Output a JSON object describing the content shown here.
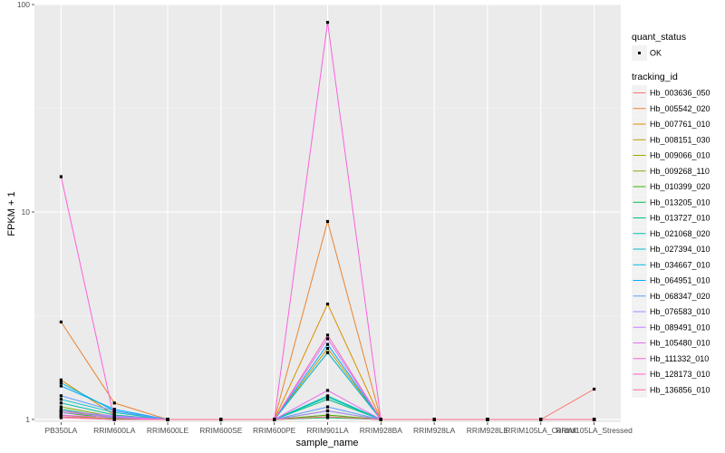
{
  "chart_data": {
    "type": "line",
    "xlabel": "sample_name",
    "ylabel": "FPKM + 1",
    "y_scale": "log10",
    "ylim": [
      0.97,
      100
    ],
    "y_ticks": [
      1,
      10,
      100
    ],
    "y_tick_labels": [
      "1",
      "10",
      "100"
    ],
    "categories": [
      "PB350LA",
      "RRIM600LA",
      "RRIM600LE",
      "RRIM600SE",
      "RRIM600PE",
      "RRIM901LA",
      "RRIM928BA",
      "RRIM928LA",
      "RRIM928LE",
      "RRIM105LA_Control",
      "RRIM105LA_Stressed"
    ],
    "category_labels": [
      "PB350LA",
      "RRIM600LA",
      "RRIM600LE",
      "RRIM600SE",
      "RRIM600PE",
      "RRIM901LA",
      "RRIM928BA",
      "RRIM928LA",
      "RRIM928LE",
      "RRIM105LA_Control",
      "RRIM105LA_Stressed"
    ],
    "grid": true,
    "legend_position": "right",
    "legend_point": {
      "title": "quant_status",
      "label": "OK"
    },
    "legend_title": "tracking_id",
    "series": [
      {
        "name": "Hb_003636_050",
        "color": "#F8766D",
        "values": [
          1.05,
          1.0,
          1.0,
          1.0,
          1.0,
          1.05,
          1.0,
          1.0,
          1.0,
          1.0,
          1.4
        ]
      },
      {
        "name": "Hb_005542_020",
        "color": "#EA8331",
        "values": [
          2.95,
          1.2,
          1.0,
          1.0,
          1.0,
          9.0,
          1.0,
          1.0,
          1.0,
          1.0,
          1.0
        ]
      },
      {
        "name": "Hb_007761_010",
        "color": "#D89000",
        "values": [
          1.55,
          1.05,
          1.0,
          1.0,
          1.0,
          3.6,
          1.0,
          1.0,
          1.0,
          1.0,
          1.0
        ]
      },
      {
        "name": "Hb_008151_030",
        "color": "#C09B00",
        "values": [
          1.1,
          1.02,
          1.0,
          1.0,
          1.0,
          2.2,
          1.0,
          1.0,
          1.0,
          1.0,
          1.0
        ]
      },
      {
        "name": "Hb_009066_010",
        "color": "#A3A500",
        "values": [
          1.05,
          1.0,
          1.0,
          1.0,
          1.0,
          2.1,
          1.0,
          1.0,
          1.0,
          1.0,
          1.0
        ]
      },
      {
        "name": "Hb_009268_110",
        "color": "#7CAE00",
        "values": [
          1.15,
          1.03,
          1.0,
          1.0,
          1.0,
          1.1,
          1.0,
          1.0,
          1.0,
          1.0,
          1.0
        ]
      },
      {
        "name": "Hb_010399_020",
        "color": "#39B600",
        "values": [
          1.08,
          1.01,
          1.0,
          1.0,
          1.0,
          1.05,
          1.0,
          1.0,
          1.0,
          1.0,
          1.0
        ]
      },
      {
        "name": "Hb_013205_010",
        "color": "#00BB4E",
        "values": [
          1.03,
          1.0,
          1.0,
          1.0,
          1.0,
          1.02,
          1.0,
          1.0,
          1.0,
          1.0,
          1.0
        ]
      },
      {
        "name": "Hb_013727_010",
        "color": "#00BF7D",
        "values": [
          1.12,
          1.02,
          1.0,
          1.0,
          1.0,
          1.25,
          1.0,
          1.0,
          1.0,
          1.0,
          1.0
        ]
      },
      {
        "name": "Hb_021068_020",
        "color": "#00C1A3",
        "values": [
          1.2,
          1.05,
          1.0,
          1.0,
          1.0,
          1.3,
          1.0,
          1.0,
          1.0,
          1.0,
          1.0
        ]
      },
      {
        "name": "Hb_027394_010",
        "color": "#00BFC4",
        "values": [
          1.25,
          1.08,
          1.0,
          1.0,
          1.0,
          1.28,
          1.0,
          1.0,
          1.0,
          1.0,
          1.0
        ]
      },
      {
        "name": "Hb_034667_010",
        "color": "#00B8E5",
        "values": [
          1.5,
          1.1,
          1.0,
          1.0,
          1.0,
          2.1,
          1.0,
          1.0,
          1.0,
          1.0,
          1.0
        ]
      },
      {
        "name": "Hb_064951_010",
        "color": "#00ABFD",
        "values": [
          1.45,
          1.12,
          1.0,
          1.0,
          1.0,
          2.3,
          1.0,
          1.0,
          1.0,
          1.0,
          1.0
        ]
      },
      {
        "name": "Hb_068347_020",
        "color": "#619CFF",
        "values": [
          1.3,
          1.1,
          1.0,
          1.0,
          1.0,
          1.15,
          1.0,
          1.0,
          1.0,
          1.0,
          1.0
        ]
      },
      {
        "name": "Hb_076583_010",
        "color": "#A58AFF",
        "values": [
          1.08,
          1.03,
          1.0,
          1.0,
          1.0,
          1.1,
          1.0,
          1.0,
          1.0,
          1.0,
          1.0
        ]
      },
      {
        "name": "Hb_089491_010",
        "color": "#C77CFF",
        "values": [
          1.1,
          1.04,
          1.0,
          1.0,
          1.0,
          2.45,
          1.0,
          1.0,
          1.0,
          1.0,
          1.0
        ]
      },
      {
        "name": "Hb_105480_010",
        "color": "#E76BF3",
        "values": [
          1.05,
          1.02,
          1.0,
          1.0,
          1.0,
          1.38,
          1.0,
          1.0,
          1.0,
          1.0,
          1.0
        ]
      },
      {
        "name": "Hb_111332_010",
        "color": "#FA62DB",
        "values": [
          14.8,
          1.0,
          1.0,
          1.0,
          1.0,
          82.0,
          1.0,
          1.0,
          1.0,
          1.0,
          1.0
        ]
      },
      {
        "name": "Hb_128173_010",
        "color": "#FF62BC",
        "values": [
          1.03,
          1.0,
          1.0,
          1.0,
          1.0,
          2.55,
          1.0,
          1.0,
          1.0,
          1.0,
          1.0
        ]
      },
      {
        "name": "Hb_136856_010",
        "color": "#FF6C91",
        "values": [
          1.02,
          1.0,
          1.0,
          1.0,
          1.0,
          1.03,
          1.0,
          1.0,
          1.0,
          1.0,
          1.0
        ]
      }
    ]
  }
}
